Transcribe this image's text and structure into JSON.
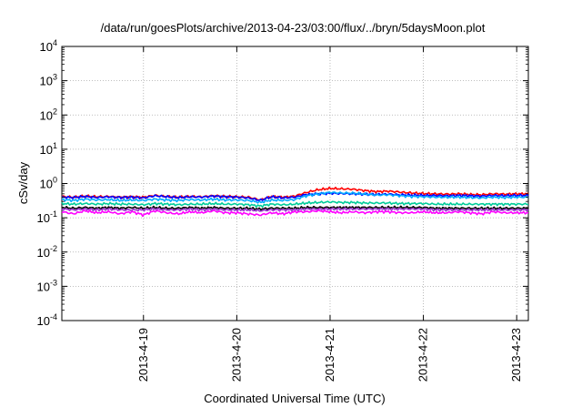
{
  "chart_data": {
    "type": "line",
    "title": "/data/run/goesPlots/archive/2013-04-23/03:00/flux/../bryn/5daysMoon.plot",
    "xlabel": "Coordinated Universal Time (UTC)",
    "ylabel": "cSv/day",
    "y_scale": "log",
    "ylim": [
      0.0001,
      10000
    ],
    "y_ticks": [
      {
        "base": "10",
        "exp": "-4",
        "value": 0.0001
      },
      {
        "base": "10",
        "exp": "-3",
        "value": 0.001
      },
      {
        "base": "10",
        "exp": "-2",
        "value": 0.01
      },
      {
        "base": "10",
        "exp": "-1",
        "value": 0.1
      },
      {
        "base": "10",
        "exp": "0",
        "value": 1
      },
      {
        "base": "10",
        "exp": "1",
        "value": 10
      },
      {
        "base": "10",
        "exp": "2",
        "value": 100
      },
      {
        "base": "10",
        "exp": "3",
        "value": 1000
      },
      {
        "base": "10",
        "exp": "4",
        "value": 10000
      }
    ],
    "xlim": [
      "2013-04-18 03:00",
      "2013-04-23 03:00"
    ],
    "x_ticks": [
      "2013-4-19",
      "2013-4-20",
      "2013-4-21",
      "2013-4-22",
      "2013-4-23"
    ],
    "grid": true,
    "series": [
      {
        "color": "#ff0000",
        "values": [
          0.42,
          0.4,
          0.43,
          0.41,
          0.42,
          0.4,
          0.41,
          0.4,
          0.45,
          0.42,
          0.4,
          0.42,
          0.41,
          0.44,
          0.42,
          0.41,
          0.4,
          0.33,
          0.42,
          0.4,
          0.43,
          0.55,
          0.66,
          0.72,
          0.7,
          0.68,
          0.62,
          0.58,
          0.6,
          0.56,
          0.53,
          0.51,
          0.5,
          0.49,
          0.5,
          0.48,
          0.47,
          0.5,
          0.49,
          0.5,
          0.5
        ]
      },
      {
        "color": "#0000ff",
        "values": [
          0.4,
          0.39,
          0.42,
          0.39,
          0.41,
          0.39,
          0.4,
          0.38,
          0.44,
          0.41,
          0.39,
          0.41,
          0.4,
          0.43,
          0.41,
          0.4,
          0.38,
          0.32,
          0.41,
          0.38,
          0.4,
          0.48,
          0.5,
          0.52,
          0.51,
          0.5,
          0.49,
          0.48,
          0.49,
          0.47,
          0.46,
          0.45,
          0.45,
          0.44,
          0.45,
          0.44,
          0.43,
          0.45,
          0.44,
          0.45,
          0.45
        ]
      },
      {
        "color": "#00aaff",
        "values": [
          0.34,
          0.32,
          0.35,
          0.33,
          0.34,
          0.32,
          0.33,
          0.32,
          0.35,
          0.33,
          0.32,
          0.34,
          0.33,
          0.35,
          0.33,
          0.33,
          0.32,
          0.28,
          0.33,
          0.32,
          0.34,
          0.44,
          0.5,
          0.55,
          0.53,
          0.52,
          0.49,
          0.46,
          0.47,
          0.44,
          0.42,
          0.41,
          0.4,
          0.4,
          0.4,
          0.39,
          0.38,
          0.4,
          0.39,
          0.4,
          0.4
        ]
      },
      {
        "color": "#00cc99",
        "values": [
          0.26,
          0.25,
          0.26,
          0.25,
          0.26,
          0.25,
          0.25,
          0.24,
          0.26,
          0.25,
          0.24,
          0.25,
          0.25,
          0.26,
          0.25,
          0.25,
          0.24,
          0.22,
          0.25,
          0.24,
          0.25,
          0.27,
          0.28,
          0.29,
          0.28,
          0.28,
          0.27,
          0.27,
          0.27,
          0.26,
          0.26,
          0.26,
          0.25,
          0.25,
          0.25,
          0.25,
          0.25,
          0.25,
          0.25,
          0.25,
          0.25
        ]
      },
      {
        "color": "#000000",
        "values": [
          0.2,
          0.19,
          0.2,
          0.19,
          0.2,
          0.19,
          0.2,
          0.19,
          0.2,
          0.19,
          0.19,
          0.2,
          0.19,
          0.2,
          0.19,
          0.19,
          0.19,
          0.18,
          0.19,
          0.19,
          0.19,
          0.2,
          0.2,
          0.2,
          0.2,
          0.2,
          0.2,
          0.2,
          0.2,
          0.2,
          0.2,
          0.2,
          0.19,
          0.19,
          0.19,
          0.19,
          0.19,
          0.19,
          0.19,
          0.19,
          0.19
        ]
      },
      {
        "color": "#9933cc",
        "values": [
          0.18,
          0.17,
          0.18,
          0.17,
          0.18,
          0.17,
          0.17,
          0.17,
          0.18,
          0.17,
          0.17,
          0.18,
          0.17,
          0.18,
          0.17,
          0.17,
          0.17,
          0.16,
          0.17,
          0.17,
          0.17,
          0.18,
          0.18,
          0.18,
          0.18,
          0.18,
          0.18,
          0.18,
          0.18,
          0.18,
          0.18,
          0.18,
          0.17,
          0.17,
          0.17,
          0.17,
          0.17,
          0.17,
          0.17,
          0.17,
          0.17
        ]
      },
      {
        "color": "#ff00ff",
        "values": [
          0.15,
          0.13,
          0.16,
          0.14,
          0.15,
          0.13,
          0.15,
          0.12,
          0.16,
          0.14,
          0.13,
          0.15,
          0.14,
          0.16,
          0.14,
          0.14,
          0.13,
          0.12,
          0.14,
          0.13,
          0.15,
          0.15,
          0.16,
          0.15,
          0.14,
          0.15,
          0.14,
          0.15,
          0.15,
          0.14,
          0.14,
          0.15,
          0.14,
          0.14,
          0.15,
          0.14,
          0.13,
          0.15,
          0.14,
          0.14,
          0.14
        ]
      }
    ]
  }
}
